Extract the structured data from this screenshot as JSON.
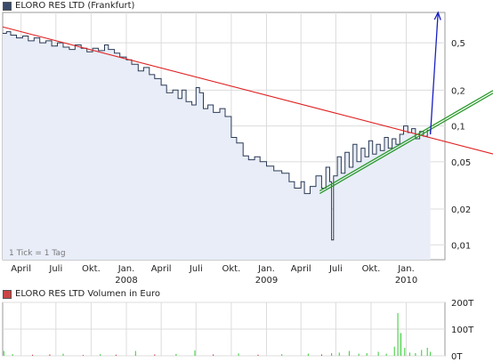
{
  "chart_data": [
    {
      "type": "line",
      "title": "ELORO RES LTD (Frankfurt)",
      "note": "1 Tick = 1 Tag",
      "y_scale": "log",
      "y_ticks": [
        "0,5",
        "0,2",
        "0,1",
        "0,05",
        "0,02",
        "0,01"
      ],
      "y_tick_values": [
        0.5,
        0.2,
        0.1,
        0.05,
        0.02,
        0.01
      ],
      "ylim": [
        0.0075,
        0.9
      ],
      "x_tick_labels": [
        {
          "label": "April",
          "date": "2007-04-01",
          "year": ""
        },
        {
          "label": "Juli",
          "date": "2007-07-01",
          "year": ""
        },
        {
          "label": "Okt.",
          "date": "2007-10-01",
          "year": ""
        },
        {
          "label": "Jan.",
          "date": "2008-01-01",
          "year": "2008"
        },
        {
          "label": "April",
          "date": "2008-04-01",
          "year": ""
        },
        {
          "label": "Juli",
          "date": "2008-07-01",
          "year": ""
        },
        {
          "label": "Okt.",
          "date": "2008-10-01",
          "year": ""
        },
        {
          "label": "Jan.",
          "date": "2009-01-01",
          "year": "2009"
        },
        {
          "label": "April",
          "date": "2009-04-01",
          "year": ""
        },
        {
          "label": "Juli",
          "date": "2009-07-01",
          "year": ""
        },
        {
          "label": "Okt.",
          "date": "2009-10-01",
          "year": ""
        },
        {
          "label": "Jan.",
          "date": "2010-01-01",
          "year": "2010"
        }
      ],
      "xlim": [
        "2007-02-12",
        "2010-04-12"
      ],
      "grid": true,
      "colors": {
        "price_line": "#2b3a55",
        "area_fill": "#e8edf8",
        "trend_down": "#e02020",
        "trend_up": "#2a9a2a",
        "arrow": "#1a20c0",
        "swatch": "#3a4a6a"
      },
      "series": [
        {
          "values": [
            [
              "2007-02-12",
              0.6
            ],
            [
              "2007-02-22",
              0.62
            ],
            [
              "2007-03-05",
              0.58
            ],
            [
              "2007-03-20",
              0.55
            ],
            [
              "2007-04-05",
              0.57
            ],
            [
              "2007-04-20",
              0.52
            ],
            [
              "2007-05-05",
              0.55
            ],
            [
              "2007-05-20",
              0.5
            ],
            [
              "2007-06-05",
              0.52
            ],
            [
              "2007-06-20",
              0.47
            ],
            [
              "2007-07-05",
              0.5
            ],
            [
              "2007-07-20",
              0.46
            ],
            [
              "2007-08-05",
              0.44
            ],
            [
              "2007-08-20",
              0.48
            ],
            [
              "2007-09-05",
              0.45
            ],
            [
              "2007-09-20",
              0.42
            ],
            [
              "2007-10-05",
              0.45
            ],
            [
              "2007-10-20",
              0.43
            ],
            [
              "2007-11-05",
              0.48
            ],
            [
              "2007-11-15",
              0.44
            ],
            [
              "2007-12-01",
              0.41
            ],
            [
              "2007-12-15",
              0.38
            ],
            [
              "2008-01-01",
              0.36
            ],
            [
              "2008-01-15",
              0.33
            ],
            [
              "2008-02-01",
              0.29
            ],
            [
              "2008-02-15",
              0.31
            ],
            [
              "2008-03-01",
              0.27
            ],
            [
              "2008-03-15",
              0.25
            ],
            [
              "2008-04-01",
              0.22
            ],
            [
              "2008-04-15",
              0.19
            ],
            [
              "2008-05-01",
              0.2
            ],
            [
              "2008-05-15",
              0.17
            ],
            [
              "2008-05-25",
              0.2
            ],
            [
              "2008-06-05",
              0.16
            ],
            [
              "2008-06-20",
              0.15
            ],
            [
              "2008-07-01",
              0.21
            ],
            [
              "2008-07-10",
              0.19
            ],
            [
              "2008-07-20",
              0.14
            ],
            [
              "2008-08-01",
              0.15
            ],
            [
              "2008-08-15",
              0.13
            ],
            [
              "2008-09-01",
              0.14
            ],
            [
              "2008-09-15",
              0.12
            ],
            [
              "2008-10-01",
              0.08
            ],
            [
              "2008-10-15",
              0.072
            ],
            [
              "2008-11-01",
              0.056
            ],
            [
              "2008-11-15",
              0.052
            ],
            [
              "2008-12-01",
              0.055
            ],
            [
              "2008-12-15",
              0.05
            ],
            [
              "2009-01-01",
              0.046
            ],
            [
              "2009-01-20",
              0.042
            ],
            [
              "2009-02-10",
              0.04
            ],
            [
              "2009-03-01",
              0.034
            ],
            [
              "2009-03-15",
              0.03
            ],
            [
              "2009-04-01",
              0.034
            ],
            [
              "2009-04-10",
              0.027
            ],
            [
              "2009-04-25",
              0.031
            ],
            [
              "2009-05-10",
              0.038
            ],
            [
              "2009-05-25",
              0.03
            ],
            [
              "2009-06-05",
              0.045
            ],
            [
              "2009-06-15",
              0.034
            ],
            [
              "2009-06-20",
              0.011
            ],
            [
              "2009-06-25",
              0.038
            ],
            [
              "2009-07-05",
              0.055
            ],
            [
              "2009-07-15",
              0.04
            ],
            [
              "2009-07-25",
              0.06
            ],
            [
              "2009-08-05",
              0.045
            ],
            [
              "2009-08-15",
              0.07
            ],
            [
              "2009-08-25",
              0.05
            ],
            [
              "2009-09-05",
              0.065
            ],
            [
              "2009-09-15",
              0.055
            ],
            [
              "2009-09-25",
              0.075
            ],
            [
              "2009-10-05",
              0.058
            ],
            [
              "2009-10-15",
              0.07
            ],
            [
              "2009-10-25",
              0.062
            ],
            [
              "2009-11-05",
              0.08
            ],
            [
              "2009-11-15",
              0.065
            ],
            [
              "2009-11-25",
              0.078
            ],
            [
              "2009-12-05",
              0.07
            ],
            [
              "2009-12-15",
              0.085
            ],
            [
              "2009-12-25",
              0.1
            ],
            [
              "2010-01-05",
              0.088
            ],
            [
              "2010-01-15",
              0.095
            ],
            [
              "2010-01-25",
              0.078
            ],
            [
              "2010-02-05",
              0.09
            ],
            [
              "2010-02-15",
              0.082
            ],
            [
              "2010-02-25",
              0.092
            ],
            [
              "2010-03-05",
              0.085
            ]
          ]
        }
      ],
      "trendlines": [
        {
          "color": "#e02020",
          "from": [
            "2007-02-12",
            0.68
          ],
          "to": [
            "2010-04-12",
            0.074
          ]
        },
        {
          "color": "#2a9a2a",
          "from": [
            "2009-05-20",
            0.027
          ],
          "to": [
            "2010-04-12",
            0.11
          ]
        }
      ],
      "arrow": {
        "color": "#1a20c0",
        "from": [
          "2010-03-05",
          0.085
        ],
        "to": [
          "2010-03-25",
          0.9
        ]
      }
    },
    {
      "type": "bar",
      "title": "ELORO RES LTD Volumen in Euro",
      "y_ticks": [
        "200T",
        "100T",
        "0T"
      ],
      "y_tick_values": [
        200,
        100,
        0
      ],
      "ylim": [
        0,
        200
      ],
      "colors": {
        "bars": "#33cc33",
        "bars_low": "#cc3333",
        "swatch": "#cc4444"
      },
      "values": [
        [
          "2007-02-15",
          18
        ],
        [
          "2007-03-10",
          6
        ],
        [
          "2007-05-01",
          4
        ],
        [
          "2007-06-15",
          5
        ],
        [
          "2007-07-20",
          8
        ],
        [
          "2007-09-10",
          3
        ],
        [
          "2007-10-25",
          6
        ],
        [
          "2007-12-05",
          4
        ],
        [
          "2008-01-25",
          18
        ],
        [
          "2008-03-15",
          5
        ],
        [
          "2008-05-10",
          7
        ],
        [
          "2008-06-28",
          20
        ],
        [
          "2008-08-15",
          5
        ],
        [
          "2008-10-20",
          9
        ],
        [
          "2008-12-10",
          4
        ],
        [
          "2009-02-10",
          6
        ],
        [
          "2009-04-20",
          8
        ],
        [
          "2009-05-25",
          5
        ],
        [
          "2009-06-20",
          10
        ],
        [
          "2009-07-10",
          12
        ],
        [
          "2009-08-05",
          18
        ],
        [
          "2009-08-30",
          8
        ],
        [
          "2009-09-20",
          10
        ],
        [
          "2009-10-20",
          15
        ],
        [
          "2009-11-10",
          8
        ],
        [
          "2009-12-01",
          34
        ],
        [
          "2009-12-10",
          160
        ],
        [
          "2009-12-18",
          85
        ],
        [
          "2009-12-28",
          30
        ],
        [
          "2010-01-10",
          12
        ],
        [
          "2010-01-25",
          10
        ],
        [
          "2010-02-10",
          22
        ],
        [
          "2010-02-25",
          30
        ],
        [
          "2010-03-05",
          15
        ]
      ]
    }
  ]
}
